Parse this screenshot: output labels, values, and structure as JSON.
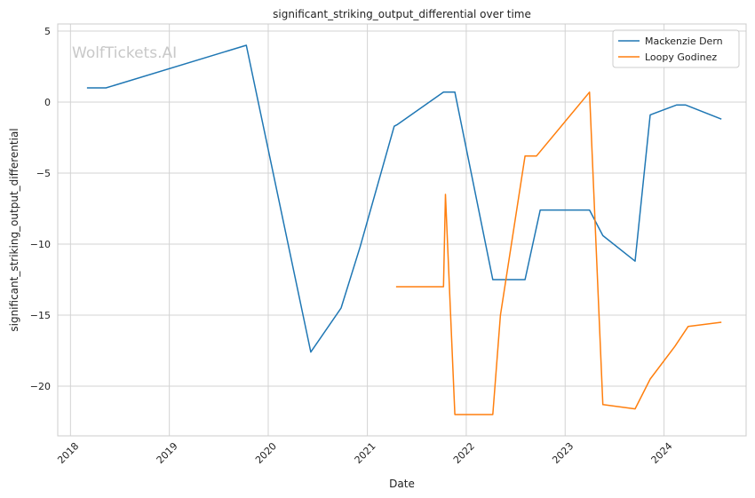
{
  "chart_data": {
    "type": "line",
    "title": "significant_striking_output_differential over time",
    "xlabel": "Date",
    "ylabel": "significant_striking_output_differential",
    "watermark": "WolfTickets.AI",
    "xlim": [
      "2017-11-15",
      "2024-10-30"
    ],
    "ylim": [
      -23.5,
      5.5
    ],
    "x_ticks": [
      "2018",
      "2019",
      "2020",
      "2021",
      "2022",
      "2023",
      "2024"
    ],
    "y_ticks": [
      5,
      0,
      -5,
      -10,
      -15,
      -20
    ],
    "y_tick_labels": [
      "5",
      "0",
      "−5",
      "−10",
      "−15",
      "−20"
    ],
    "grid": true,
    "legend_position": "top-right",
    "series": [
      {
        "name": "Mackenzie Dern",
        "color": "#1f77b4",
        "points": [
          [
            "2018-03-03",
            1.0
          ],
          [
            "2018-05-12",
            1.0
          ],
          [
            "2019-10-12",
            4.0
          ],
          [
            "2020-06-06",
            -17.6
          ],
          [
            "2020-09-26",
            -14.5
          ],
          [
            "2020-12-05",
            -10.2
          ],
          [
            "2021-04-10",
            -1.7
          ],
          [
            "2021-04-20",
            -1.6
          ],
          [
            "2021-10-09",
            0.7
          ],
          [
            "2021-11-20",
            0.7
          ],
          [
            "2022-04-09",
            -12.5
          ],
          [
            "2022-08-06",
            -12.5
          ],
          [
            "2022-10-01",
            -7.6
          ],
          [
            "2023-04-01",
            -7.6
          ],
          [
            "2023-05-20",
            -9.4
          ],
          [
            "2023-09-16",
            -11.2
          ],
          [
            "2023-11-11",
            -0.9
          ],
          [
            "2024-02-17",
            -0.2
          ],
          [
            "2024-03-20",
            -0.2
          ],
          [
            "2024-07-31",
            -1.2
          ]
        ]
      },
      {
        "name": "Loopy Godinez",
        "color": "#ff7f0e",
        "points": [
          [
            "2021-04-17",
            -13.0
          ],
          [
            "2021-10-09",
            -13.0
          ],
          [
            "2021-10-16",
            -6.5
          ],
          [
            "2021-11-20",
            -22.0
          ],
          [
            "2022-04-09",
            -22.0
          ],
          [
            "2022-05-07",
            -15.0
          ],
          [
            "2022-08-06",
            -3.8
          ],
          [
            "2022-09-17",
            -3.8
          ],
          [
            "2023-04-01",
            0.7
          ],
          [
            "2023-05-20",
            -21.3
          ],
          [
            "2023-09-16",
            -21.6
          ],
          [
            "2023-11-11",
            -19.5
          ],
          [
            "2024-02-10",
            -17.2
          ],
          [
            "2024-03-30",
            -15.8
          ],
          [
            "2024-07-31",
            -15.5
          ]
        ]
      }
    ]
  }
}
